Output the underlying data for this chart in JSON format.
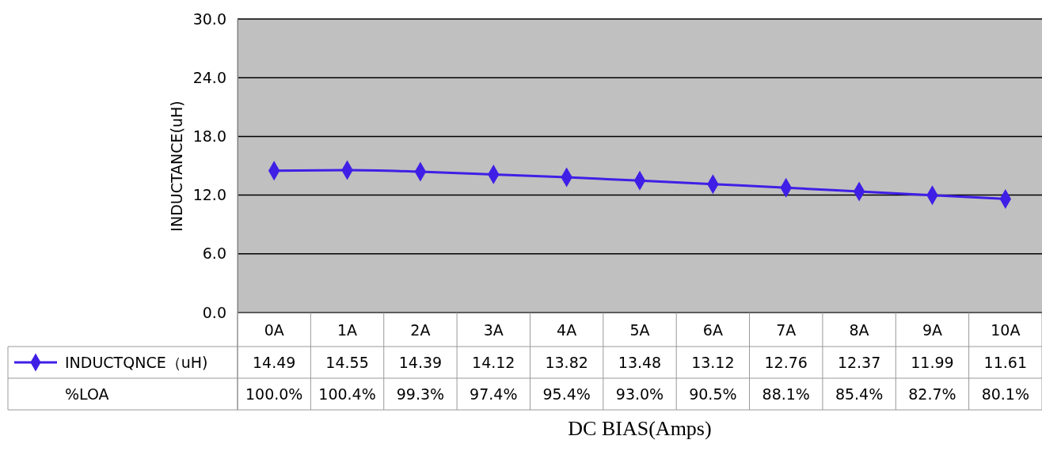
{
  "chart_data": {
    "type": "line",
    "xlabel": "DC BIAS(Amps)",
    "ylabel": "INDUCTANCE(uH)",
    "categories": [
      "0A",
      "1A",
      "2A",
      "3A",
      "4A",
      "5A",
      "6A",
      "7A",
      "8A",
      "9A",
      "10A"
    ],
    "series": [
      {
        "name": "INDUCTQNCE（uH)",
        "color": "#3f1fe6",
        "values": [
          14.49,
          14.55,
          14.39,
          14.12,
          13.82,
          13.48,
          13.12,
          12.76,
          12.37,
          11.99,
          11.61
        ]
      }
    ],
    "annotations": [
      "%LOA",
      "100.0%",
      "100.4%",
      "99.3%",
      "97.4%",
      "95.4%",
      "93.0%",
      "90.5%",
      "88.1%",
      "85.4%",
      "82.7%",
      "80.1%"
    ],
    "ylim": [
      0,
      30
    ],
    "yticks": [
      {
        "value": 0,
        "label": "0.0"
      },
      {
        "value": 6,
        "label": "6.0"
      },
      {
        "value": 12,
        "label": "12.0"
      },
      {
        "value": 18,
        "label": "18.0"
      },
      {
        "value": 24,
        "label": "24.0"
      },
      {
        "value": 30,
        "label": "30.0"
      }
    ],
    "grid": "y",
    "marker": "diamond",
    "data_labels": true,
    "legend": "bottom left"
  }
}
